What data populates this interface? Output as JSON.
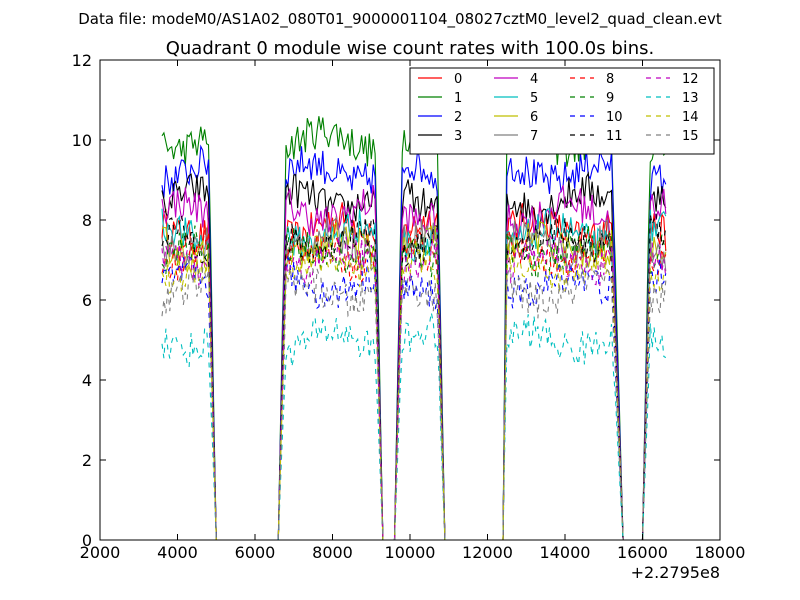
{
  "suptitle": "Data file: modeM0/AS1A02_080T01_9000001104_08027cztM0_level2_quad_clean.evt",
  "chart_data": {
    "type": "line",
    "title": "Quadrant 0 module wise count rates with 100.0s bins.",
    "xlabel": "",
    "ylabel": "",
    "xlim": [
      2000,
      18000
    ],
    "ylim": [
      0,
      12
    ],
    "x_offset_label": "+2.2795e8",
    "x_ticks": [
      "2000",
      "4000",
      "6000",
      "8000",
      "10000",
      "12000",
      "14000",
      "16000",
      "18000"
    ],
    "y_ticks": [
      "0",
      "2",
      "4",
      "6",
      "8",
      "10",
      "12"
    ],
    "grid": false,
    "legend": {
      "placement": "top-right",
      "columns": 4
    },
    "segments": [
      {
        "x_start": 3600,
        "x_end": 4800,
        "ramp_end": 5000
      },
      {
        "x_start": 6800,
        "x_end": 9100,
        "ramp_start": 6600,
        "ramp_end": 9300
      },
      {
        "x_start": 9800,
        "x_end": 10700,
        "ramp_start": 9600,
        "ramp_end": 10900
      },
      {
        "x_start": 12500,
        "x_end": 15200,
        "ramp_start": 12400,
        "ramp_end": 15500
      },
      {
        "x_start": 16200,
        "x_end": 16600,
        "ramp_start": 16000
      }
    ],
    "series": [
      {
        "name": "0",
        "color": "#ff0000",
        "dash": "solid",
        "level": 7.8
      },
      {
        "name": "1",
        "color": "#008000",
        "dash": "solid",
        "level": 10.0
      },
      {
        "name": "2",
        "color": "#0000ff",
        "dash": "solid",
        "level": 9.2
      },
      {
        "name": "3",
        "color": "#000000",
        "dash": "solid",
        "level": 8.5
      },
      {
        "name": "4",
        "color": "#bf00bf",
        "dash": "solid",
        "level": 8.2
      },
      {
        "name": "5",
        "color": "#00bfbf",
        "dash": "solid",
        "level": 7.6
      },
      {
        "name": "6",
        "color": "#bfbf00",
        "dash": "solid",
        "level": 7.3
      },
      {
        "name": "7",
        "color": "#808080",
        "dash": "solid",
        "level": 7.4
      },
      {
        "name": "8",
        "color": "#ff0000",
        "dash": "dashed",
        "level": 7.1
      },
      {
        "name": "9",
        "color": "#008000",
        "dash": "dashed",
        "level": 7.2
      },
      {
        "name": "10",
        "color": "#0000ff",
        "dash": "dashed",
        "level": 6.4
      },
      {
        "name": "11",
        "color": "#000000",
        "dash": "dashed",
        "level": 7.5
      },
      {
        "name": "12",
        "color": "#bf00bf",
        "dash": "dashed",
        "level": 7.0
      },
      {
        "name": "13",
        "color": "#00bfbf",
        "dash": "dashed",
        "level": 5.0
      },
      {
        "name": "14",
        "color": "#bfbf00",
        "dash": "dashed",
        "level": 6.8
      },
      {
        "name": "15",
        "color": "#808080",
        "dash": "dashed",
        "level": 6.2
      }
    ]
  }
}
